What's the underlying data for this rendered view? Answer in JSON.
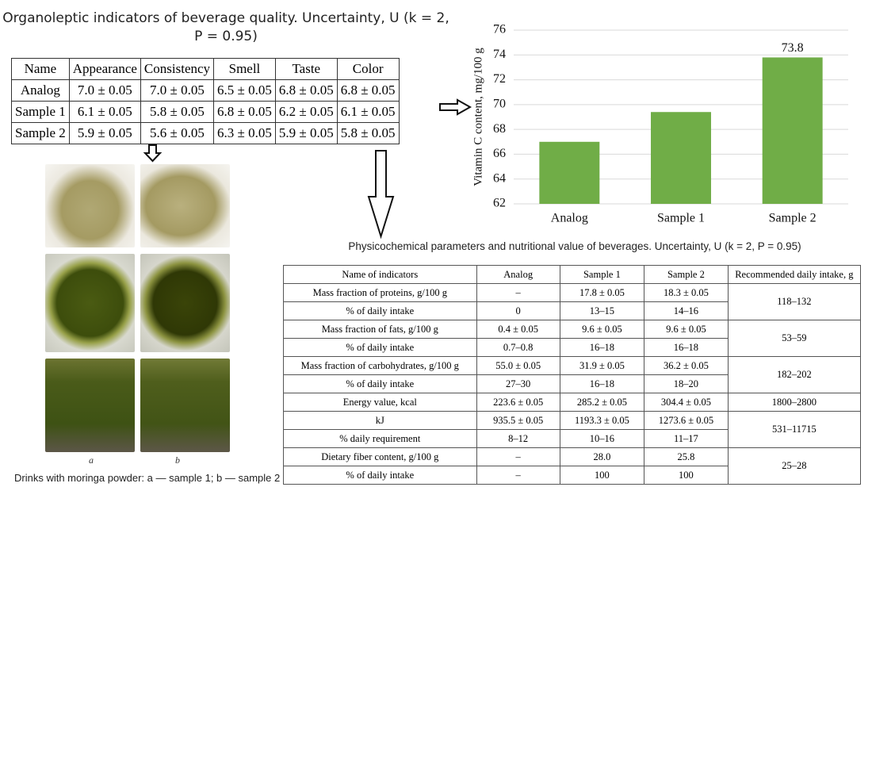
{
  "chart_data": {
    "type": "bar",
    "y_label": "Vitamin C content, mg/100 g",
    "categories": [
      "Analog",
      "Sample 1",
      "Sample 2"
    ],
    "values": [
      67.0,
      69.4,
      73.8
    ],
    "value_labels": [
      null,
      null,
      "73.8"
    ],
    "color": "#70ad47",
    "ylim": [
      62,
      76
    ],
    "yticks": [
      62,
      64,
      66,
      68,
      70,
      72,
      74,
      76
    ],
    "grid": true
  },
  "table1": {
    "title": "Organoleptic indicators of beverage quality. Uncertainty, U (k = 2, P = 0.95)",
    "headers": [
      "Name",
      "Appearance",
      "Consistency",
      "Smell",
      "Taste",
      "Color"
    ],
    "rows": [
      [
        "Analog",
        "7.0 ± 0.05",
        "7.0 ± 0.05",
        "6.5 ± 0.05",
        "6.8 ± 0.05",
        "6.8 ± 0.05"
      ],
      [
        "Sample 1",
        "6.1 ± 0.05",
        "5.8 ± 0.05",
        "6.8 ± 0.05",
        "6.2 ± 0.05",
        "6.1 ± 0.05"
      ],
      [
        "Sample 2",
        "5.9 ± 0.05",
        "5.6 ± 0.05",
        "6.3 ± 0.05",
        "5.9 ± 0.05",
        "5.8 ± 0.05"
      ]
    ]
  },
  "photos": {
    "label_a": "a",
    "label_b": "b",
    "caption": "Drinks with moringa powder: a — sample 1; b — sample 2"
  },
  "table2": {
    "title": "Physicochemical parameters and nutritional value of beverages. Uncertainty, U (k = 2, P = 0.95)",
    "headers": [
      "Name of indicators",
      "Analog",
      "Sample 1",
      "Sample 2",
      "Recommended daily intake, g"
    ],
    "groups": [
      {
        "rows": [
          [
            "Mass fraction of proteins, g/100 g",
            "–",
            "17.8 ± 0.05",
            "18.3 ± 0.05"
          ],
          [
            "% of daily intake",
            "0",
            "13–15",
            "14–16"
          ]
        ],
        "recommended": "118–132"
      },
      {
        "rows": [
          [
            "Mass fraction of fats, g/100 g",
            "0.4 ± 0.05",
            "9.6 ± 0.05",
            "9.6 ± 0.05"
          ],
          [
            "% of daily intake",
            "0.7–0.8",
            "16–18",
            "16–18"
          ]
        ],
        "recommended": "53–59"
      },
      {
        "rows": [
          [
            "Mass fraction of carbohydrates, g/100 g",
            "55.0 ± 0.05",
            "31.9 ± 0.05",
            "36.2 ± 0.05"
          ],
          [
            "% of daily intake",
            "27–30",
            "16–18",
            "18–20"
          ]
        ],
        "recommended": "182–202"
      },
      {
        "rows": [
          [
            "Energy value, kcal",
            "223.6 ± 0.05",
            "285.2 ± 0.05",
            "304.4 ± 0.05"
          ]
        ],
        "recommended": "1800–2800"
      },
      {
        "rows": [
          [
            "kJ",
            "935.5 ± 0.05",
            "1193.3 ± 0.05",
            "1273.6 ± 0.05"
          ],
          [
            "% daily requirement",
            "8–12",
            "10–16",
            "11–17"
          ]
        ],
        "recommended": "531–11715"
      },
      {
        "rows": [
          [
            "Dietary fiber content, g/100 g",
            "–",
            "28.0",
            "25.8"
          ],
          [
            "% of daily intake",
            "–",
            "100",
            "100"
          ]
        ],
        "recommended": "25–28"
      }
    ]
  }
}
